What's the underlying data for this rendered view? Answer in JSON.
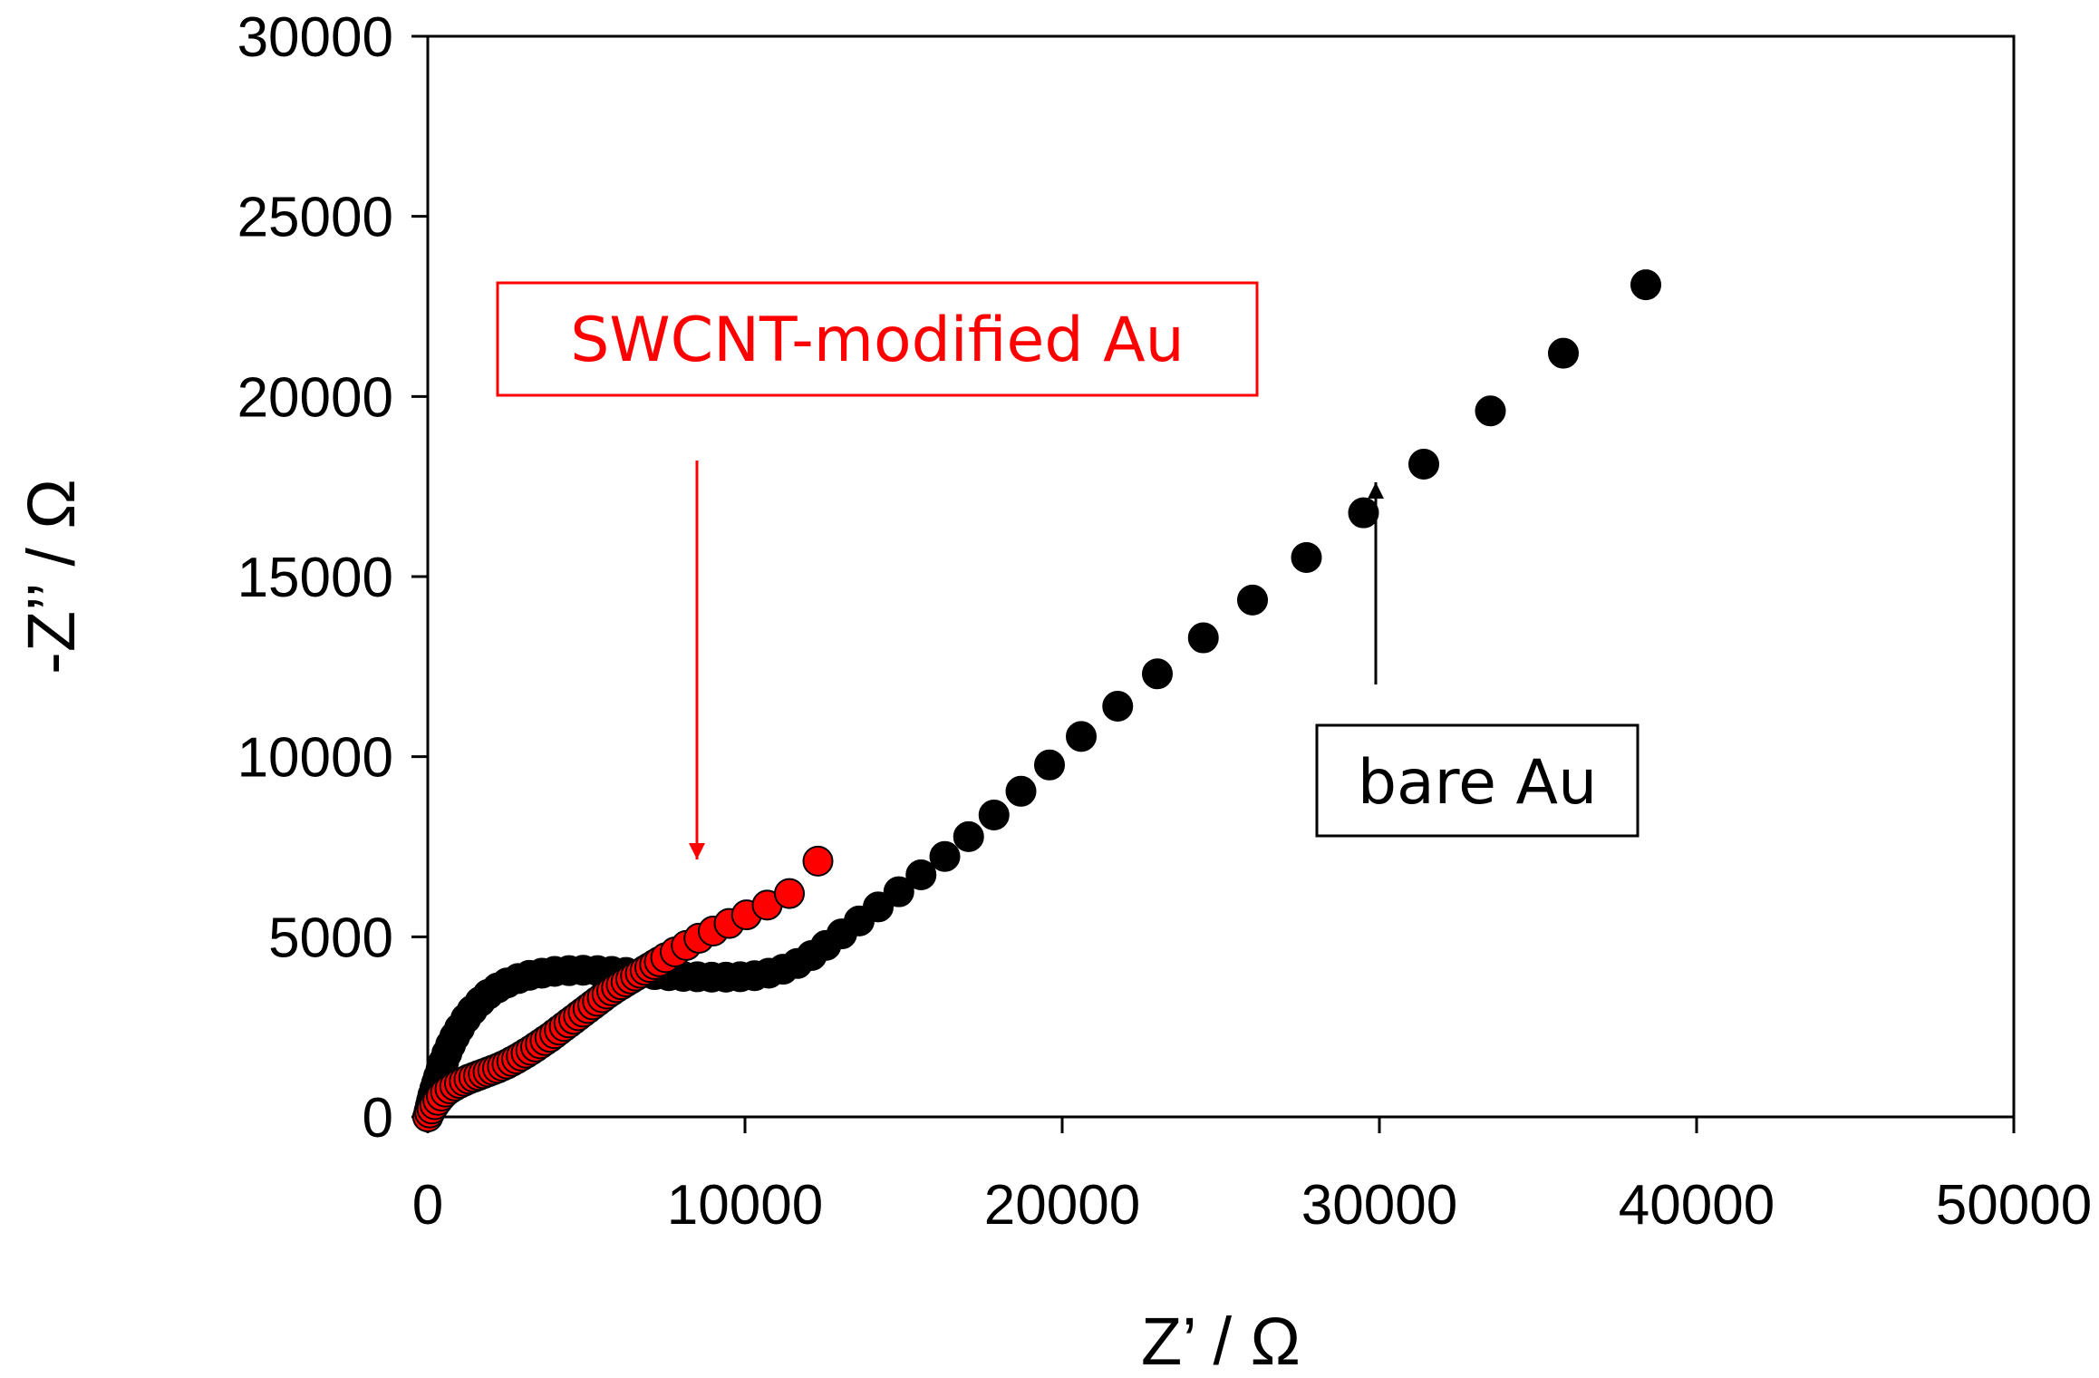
{
  "chart_data": {
    "type": "scatter",
    "title": "",
    "xlabel": "Z’ / Ω",
    "ylabel": "-Z’’ / Ω",
    "xlim": [
      0,
      50000
    ],
    "ylim": [
      0,
      30000
    ],
    "xticks": [
      "0",
      "10000",
      "20000",
      "30000",
      "40000",
      "50000"
    ],
    "yticks": [
      "0",
      "5000",
      "10000",
      "15000",
      "20000",
      "25000",
      "30000"
    ],
    "grid": false,
    "legend": "none",
    "annotations": [
      {
        "text": "SWCNT-modified Au",
        "color": "#ff0000"
      },
      {
        "text": "bare Au",
        "color": "#000000"
      }
    ],
    "series": [
      {
        "name": "bare Au",
        "color": "#000000",
        "x": [
          0,
          40,
          80,
          120,
          160,
          220,
          280,
          340,
          420,
          500,
          600,
          720,
          850,
          1000,
          1200,
          1400,
          1650,
          1900,
          2200,
          2500,
          2850,
          3200,
          3600,
          4000,
          4450,
          4900,
          5350,
          5800,
          6250,
          6700,
          7150,
          7600,
          8050,
          8500,
          8950,
          9400,
          9850,
          10300,
          10750,
          11200,
          11650,
          12100,
          12550,
          13050,
          13600,
          14200,
          14850,
          15550,
          16300,
          17050,
          17850,
          18700,
          19600,
          20600,
          21750,
          23000,
          24450,
          26000,
          27700,
          29500,
          31400,
          33500,
          35800,
          38400
        ],
        "y": [
          0,
          150,
          300,
          450,
          600,
          780,
          950,
          1120,
          1330,
          1530,
          1760,
          2000,
          2230,
          2460,
          2730,
          2960,
          3200,
          3400,
          3580,
          3720,
          3840,
          3930,
          3990,
          4040,
          4060,
          4070,
          4060,
          4040,
          4010,
          3980,
          3950,
          3920,
          3900,
          3890,
          3880,
          3880,
          3890,
          3920,
          3990,
          4100,
          4260,
          4480,
          4760,
          5080,
          5440,
          5830,
          6250,
          6720,
          7230,
          7780,
          8380,
          9040,
          9770,
          10560,
          11400,
          12300,
          13300,
          14350,
          15530,
          16770,
          18120,
          19600,
          21200,
          23100
        ]
      },
      {
        "name": "SWCNT-modified Au",
        "color": "#ff0000",
        "x": [
          0,
          60,
          130,
          220,
          320,
          430,
          560,
          700,
          850,
          1000,
          1150,
          1300,
          1450,
          1600,
          1750,
          1900,
          2050,
          2200,
          2350,
          2500,
          2650,
          2800,
          2950,
          3100,
          3250,
          3400,
          3550,
          3700,
          3850,
          4000,
          4150,
          4300,
          4450,
          4600,
          4750,
          4900,
          5050,
          5200,
          5350,
          5500,
          5650,
          5800,
          5950,
          6100,
          6250,
          6400,
          6550,
          6700,
          6850,
          7000,
          7150,
          7300,
          7500,
          7800,
          8150,
          8550,
          9000,
          9500,
          10050,
          10700,
          11400,
          12300
        ],
        "y": [
          0,
          110,
          220,
          340,
          460,
          580,
          690,
          780,
          860,
          930,
          990,
          1050,
          1100,
          1150,
          1200,
          1250,
          1300,
          1350,
          1410,
          1470,
          1540,
          1610,
          1690,
          1770,
          1850,
          1940,
          2030,
          2120,
          2210,
          2310,
          2410,
          2510,
          2610,
          2710,
          2810,
          2910,
          3010,
          3110,
          3210,
          3310,
          3410,
          3500,
          3590,
          3670,
          3750,
          3830,
          3910,
          3990,
          4070,
          4150,
          4230,
          4310,
          4420,
          4580,
          4760,
          4960,
          5160,
          5370,
          5610,
          5880,
          6200,
          7100
        ]
      }
    ]
  }
}
